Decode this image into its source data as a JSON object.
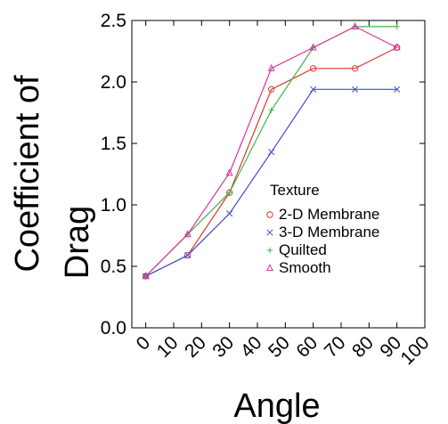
{
  "chart_data": {
    "type": "line",
    "title": "",
    "xlabel": "Angle",
    "ylabel": [
      "Coefficient of",
      "Drag"
    ],
    "xlim": [
      -5,
      100
    ],
    "ylim": [
      0,
      2.5
    ],
    "xticks": [
      0,
      10,
      20,
      30,
      40,
      50,
      60,
      70,
      80,
      90,
      100
    ],
    "xtick_labels": [
      "0",
      "10",
      "20",
      "30",
      "40",
      "50",
      "60",
      "70",
      "80",
      "90",
      "100"
    ],
    "yticks": [
      0,
      0.5,
      1,
      1.5,
      2,
      2.5
    ],
    "ytick_labels": [
      "0.0",
      "0.5",
      "1.0",
      "1.5",
      "2.0",
      "2.5"
    ],
    "grid": false,
    "legend": {
      "title": "Texture",
      "placement": "right-center"
    },
    "x": [
      0,
      15,
      30,
      45,
      60,
      75,
      90
    ],
    "series": [
      {
        "name": "2-D Membrane",
        "color": "#e0362f",
        "marker": "circle",
        "values": [
          0.42,
          0.59,
          1.1,
          1.94,
          2.11,
          2.11,
          2.28
        ]
      },
      {
        "name": "3-D Membrane",
        "color": "#3e4bd0",
        "marker": "x",
        "values": [
          0.42,
          0.59,
          0.93,
          1.43,
          1.94,
          1.94,
          1.94
        ]
      },
      {
        "name": "Quilted",
        "color": "#3fb54a",
        "marker": "plus",
        "values": [
          0.42,
          0.76,
          1.1,
          1.77,
          2.28,
          2.45,
          2.45
        ]
      },
      {
        "name": "Smooth",
        "color": "#d9349c",
        "marker": "triangle",
        "values": [
          0.42,
          0.76,
          1.26,
          2.11,
          2.28,
          2.45,
          2.28
        ]
      }
    ]
  }
}
